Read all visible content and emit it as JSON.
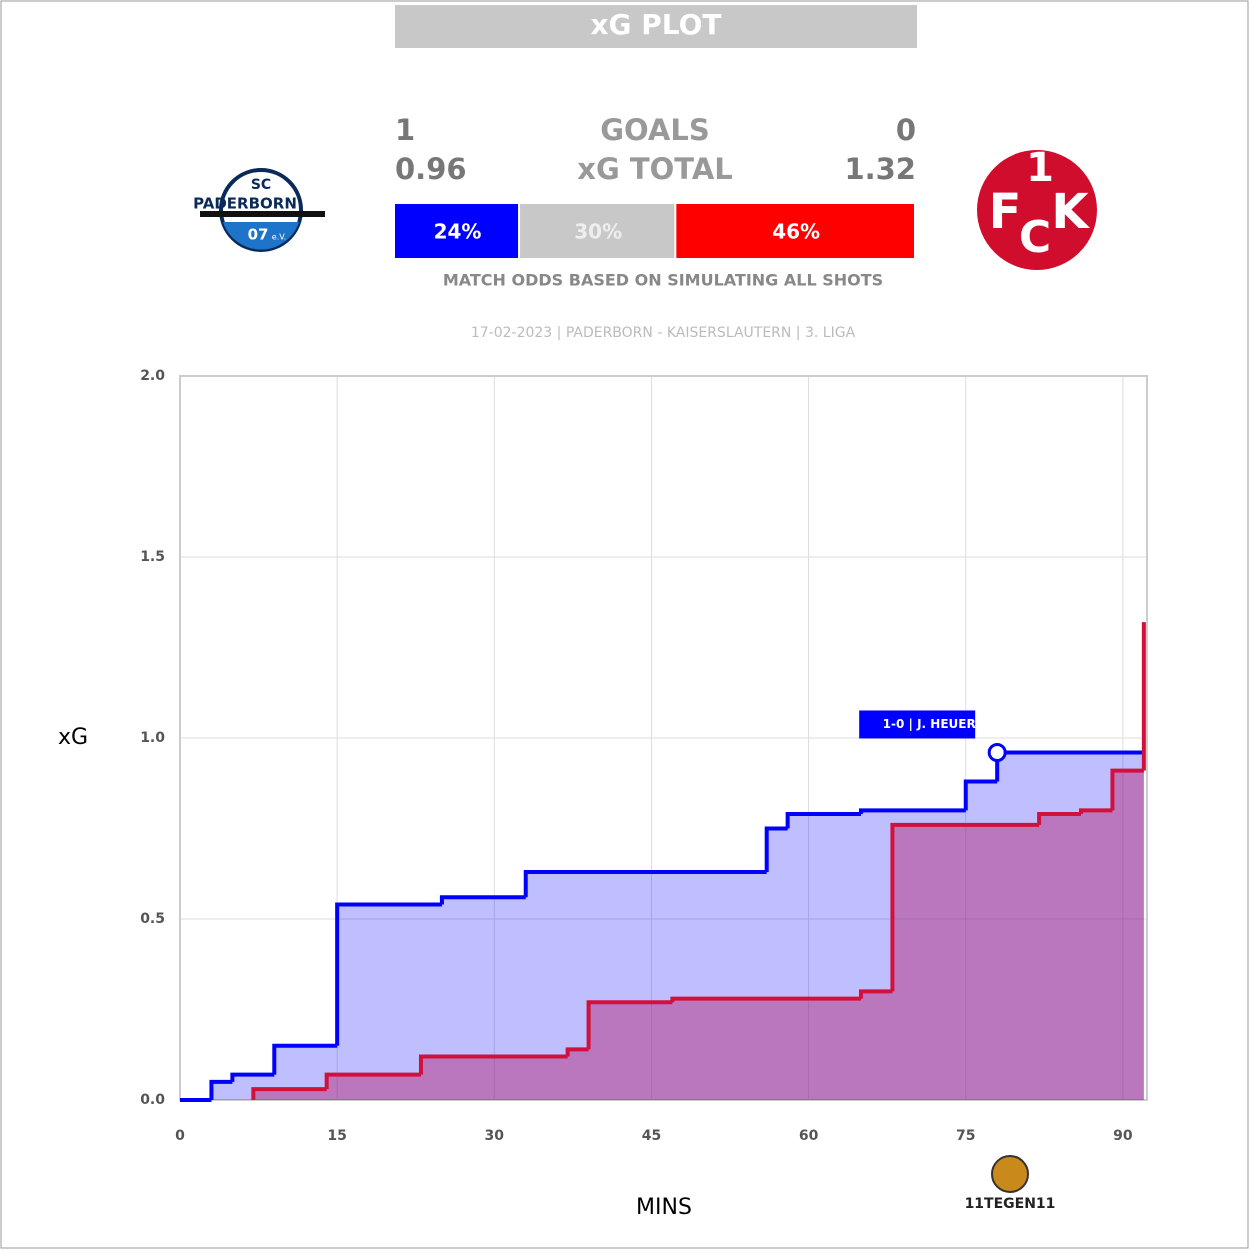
{
  "header": {
    "title": "xG PLOT",
    "home_goals": 1,
    "goals_label": "GOALS",
    "away_goals": 0,
    "home_xg": 0.96,
    "xg_label": "xG TOTAL",
    "away_xg": 1.32,
    "odds": {
      "values": [
        24,
        30,
        46
      ],
      "value_labels": [
        "24%",
        "30%",
        "46%"
      ],
      "colors": [
        "#0000ff",
        "#c8c8c8",
        "#ff0000"
      ]
    },
    "odds_note": "MATCH ODDS BASED ON SIMULATING ALL SHOTS",
    "match_info": "17-02-2023 | PADERBORN - KAISERSLAUTERN | 3. LIGA",
    "home_logo": [
      "SC",
      "PADERBORN",
      "07",
      "e.V."
    ],
    "away_logo": [
      "1",
      "F",
      "C",
      "K"
    ]
  },
  "chart_data": {
    "type": "step",
    "x_label": "MINS",
    "y_label": "xG",
    "xlim": [
      0,
      92.3
    ],
    "ylim": [
      0,
      2.0
    ],
    "xticks": [
      0,
      15,
      30,
      45,
      60,
      75,
      90
    ],
    "yticks": [
      {
        "value": 0,
        "label": "0.0"
      },
      {
        "value": 0.5,
        "label": "0.5"
      },
      {
        "value": 1,
        "label": "1.0"
      },
      {
        "value": 1.5,
        "label": "1.5"
      },
      {
        "value": 2,
        "label": "2.0"
      }
    ],
    "grid": true,
    "series": [
      {
        "color": "#0000ff",
        "fill": "rgba(0,0,255,0.25)",
        "x": [
          0,
          3,
          5,
          9,
          15,
          25,
          33,
          56,
          58,
          65,
          75,
          78,
          92
        ],
        "values": [
          0,
          0.05,
          0.07,
          0.15,
          0.54,
          0.56,
          0.63,
          0.75,
          0.79,
          0.8,
          0.88,
          0.96,
          0.96
        ]
      },
      {
        "color": "#d2103c",
        "fill": "rgba(180,30,110,0.45)",
        "x": [
          7,
          14,
          23,
          37,
          39,
          47,
          65,
          68,
          82,
          86,
          89,
          92
        ],
        "values": [
          0.03,
          0.07,
          0.12,
          0.14,
          0.27,
          0.28,
          0.3,
          0.76,
          0.79,
          0.8,
          0.91,
          1.32
        ]
      }
    ],
    "annotations": [
      {
        "x": 78,
        "y": 0.96,
        "text": "1-0 | J. HEUER"
      }
    ],
    "watermark": "11TEGEN11"
  }
}
